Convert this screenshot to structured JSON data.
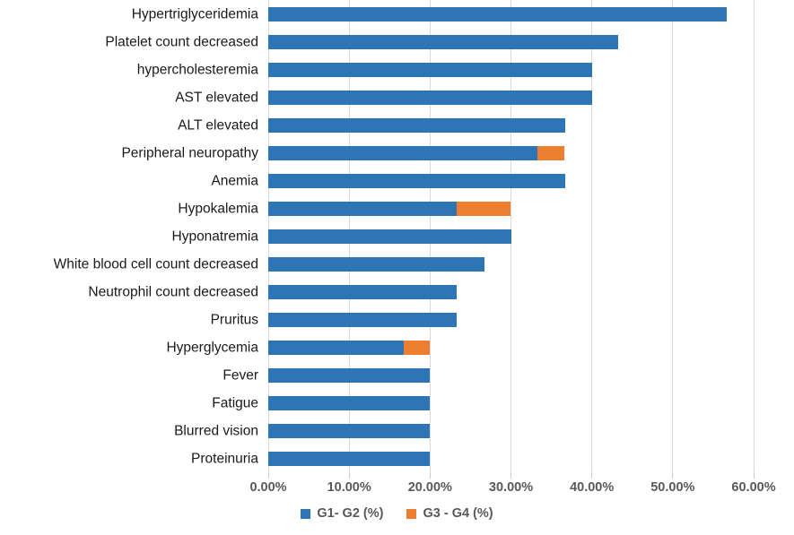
{
  "chart_data": {
    "type": "bar",
    "orientation": "horizontal",
    "stacked": true,
    "title": "",
    "xlabel": "",
    "ylabel": "",
    "grid": true,
    "legend_position": "bottom",
    "categories": [
      "Hypertriglyceridemia",
      "Platelet count decreased",
      "hypercholesteremia",
      "AST elevated",
      "ALT elevated",
      "Peripheral neuropathy",
      "Anemia",
      "Hypokalemia",
      "Hyponatremia",
      "White blood cell count decreased",
      "Neutrophil count decreased",
      "Pruritus",
      "Hyperglycemia",
      "Fever",
      "Fatigue",
      "Blurred vision",
      "Proteinuria"
    ],
    "series": [
      {
        "name": "G1- G2 (%)",
        "color": "#2E75B6",
        "values": [
          56.7,
          43.3,
          40.0,
          40.0,
          36.7,
          33.3,
          36.7,
          23.3,
          30.0,
          26.7,
          23.3,
          23.3,
          16.7,
          20.0,
          20.0,
          20.0,
          20.0
        ]
      },
      {
        "name": "G3 - G4 (%)",
        "color": "#ED7D31",
        "values": [
          0,
          0,
          0,
          0,
          0,
          3.3,
          0,
          6.7,
          0,
          0,
          0,
          0,
          3.3,
          0,
          0,
          0,
          0
        ]
      }
    ],
    "x_axis": {
      "min": 0,
      "max": 60,
      "step": 10,
      "tick_labels": [
        "0.00%",
        "10.00%",
        "20.00%",
        "30.00%",
        "40.00%",
        "50.00%",
        "60.00%"
      ]
    }
  },
  "legend": {
    "items": [
      {
        "label": "G1- G2 (%)",
        "color": "#2E75B6"
      },
      {
        "label": "G3 - G4 (%)",
        "color": "#ED7D31"
      }
    ]
  },
  "colors": {
    "gridline": "#D9D9D9",
    "tick": "#C9C9C9",
    "axis_text": "#595959",
    "category_text": "#1A1A1A",
    "background": "#FFFFFF"
  }
}
